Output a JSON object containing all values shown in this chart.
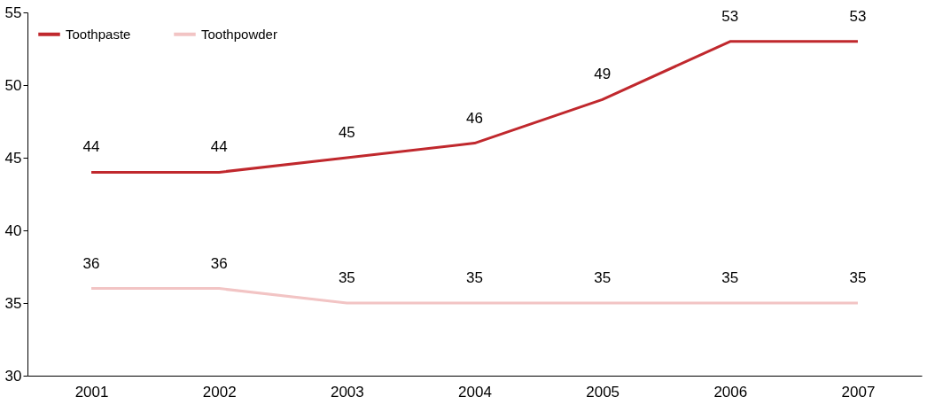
{
  "chart_data": {
    "type": "line",
    "categories": [
      "2001",
      "2002",
      "2003",
      "2004",
      "2005",
      "2006",
      "2007"
    ],
    "series": [
      {
        "name": "Toothpaste",
        "color": "#c0282d",
        "values": [
          44,
          44,
          45,
          46,
          49,
          53,
          53
        ]
      },
      {
        "name": "Toothpowder",
        "color": "#f2c4c4",
        "values": [
          36,
          36,
          35,
          35,
          35,
          35,
          35
        ]
      }
    ],
    "ylim": [
      30,
      55
    ],
    "yticks": [
      30,
      35,
      40,
      45,
      50,
      55
    ],
    "grid": false,
    "legend": "top left",
    "data_labels": true,
    "marker": "none",
    "line_style": "solid"
  }
}
